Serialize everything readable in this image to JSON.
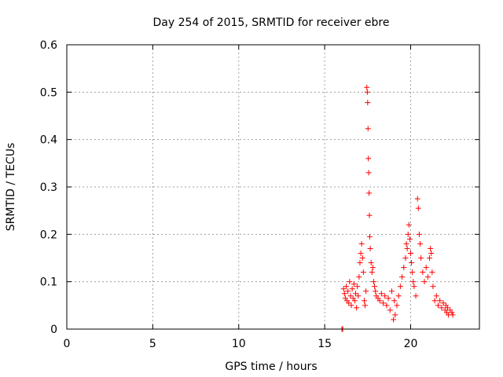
{
  "chart_data": {
    "type": "scatter",
    "title": "Day 254 of 2015, SRMTID for receiver ebre",
    "xlabel": "GPS time / hours",
    "ylabel": "SRMTID / TECUs",
    "xlim": [
      0,
      24
    ],
    "ylim": [
      0,
      0.6
    ],
    "xticks": [
      "0",
      "5",
      "10",
      "15",
      "20"
    ],
    "yticks": [
      "0",
      "0.1",
      "0.2",
      "0.3",
      "0.4",
      "0.5",
      "0.6"
    ],
    "grid": true,
    "marker": "+",
    "series": [
      {
        "name": "SRMTID",
        "color": "#ff0000",
        "points": [
          [
            16.0,
            0.0
          ],
          [
            16.05,
            0.0
          ],
          [
            16.1,
            0.085
          ],
          [
            16.15,
            0.075
          ],
          [
            16.2,
            0.065
          ],
          [
            16.25,
            0.09
          ],
          [
            16.3,
            0.06
          ],
          [
            16.35,
            0.08
          ],
          [
            16.4,
            0.055
          ],
          [
            16.45,
            0.1
          ],
          [
            16.5,
            0.07
          ],
          [
            16.55,
            0.05
          ],
          [
            16.6,
            0.085
          ],
          [
            16.65,
            0.065
          ],
          [
            16.7,
            0.095
          ],
          [
            16.75,
            0.06
          ],
          [
            16.8,
            0.075
          ],
          [
            16.85,
            0.045
          ],
          [
            16.9,
            0.09
          ],
          [
            16.95,
            0.07
          ],
          [
            17.0,
            0.11
          ],
          [
            17.05,
            0.14
          ],
          [
            17.1,
            0.16
          ],
          [
            17.15,
            0.18
          ],
          [
            17.2,
            0.15
          ],
          [
            17.25,
            0.12
          ],
          [
            17.3,
            0.06
          ],
          [
            17.35,
            0.05
          ],
          [
            17.4,
            0.08
          ],
          [
            17.45,
            0.51
          ],
          [
            17.48,
            0.5
          ],
          [
            17.5,
            0.478
          ],
          [
            17.52,
            0.423
          ],
          [
            17.54,
            0.36
          ],
          [
            17.56,
            0.33
          ],
          [
            17.58,
            0.287
          ],
          [
            17.6,
            0.24
          ],
          [
            17.62,
            0.195
          ],
          [
            17.65,
            0.17
          ],
          [
            17.7,
            0.14
          ],
          [
            17.75,
            0.12
          ],
          [
            17.8,
            0.13
          ],
          [
            17.85,
            0.1
          ],
          [
            17.9,
            0.09
          ],
          [
            17.95,
            0.08
          ],
          [
            18.0,
            0.07
          ],
          [
            18.1,
            0.065
          ],
          [
            18.2,
            0.06
          ],
          [
            18.3,
            0.075
          ],
          [
            18.4,
            0.055
          ],
          [
            18.5,
            0.07
          ],
          [
            18.6,
            0.05
          ],
          [
            18.7,
            0.065
          ],
          [
            18.8,
            0.04
          ],
          [
            18.9,
            0.08
          ],
          [
            19.0,
            0.02
          ],
          [
            19.05,
            0.06
          ],
          [
            19.1,
            0.03
          ],
          [
            19.2,
            0.05
          ],
          [
            19.3,
            0.07
          ],
          [
            19.4,
            0.09
          ],
          [
            19.5,
            0.11
          ],
          [
            19.6,
            0.13
          ],
          [
            19.7,
            0.15
          ],
          [
            19.75,
            0.18
          ],
          [
            19.8,
            0.17
          ],
          [
            19.85,
            0.2
          ],
          [
            19.9,
            0.22
          ],
          [
            19.95,
            0.19
          ],
          [
            20.0,
            0.16
          ],
          [
            20.05,
            0.14
          ],
          [
            20.1,
            0.12
          ],
          [
            20.15,
            0.1
          ],
          [
            20.2,
            0.09
          ],
          [
            20.3,
            0.07
          ],
          [
            20.4,
            0.275
          ],
          [
            20.45,
            0.255
          ],
          [
            20.5,
            0.2
          ],
          [
            20.55,
            0.18
          ],
          [
            20.6,
            0.15
          ],
          [
            20.7,
            0.12
          ],
          [
            20.8,
            0.1
          ],
          [
            20.9,
            0.13
          ],
          [
            21.0,
            0.11
          ],
          [
            21.1,
            0.15
          ],
          [
            21.15,
            0.17
          ],
          [
            21.2,
            0.16
          ],
          [
            21.25,
            0.12
          ],
          [
            21.3,
            0.09
          ],
          [
            21.4,
            0.06
          ],
          [
            21.5,
            0.07
          ],
          [
            21.6,
            0.05
          ],
          [
            21.7,
            0.06
          ],
          [
            21.8,
            0.045
          ],
          [
            21.9,
            0.055
          ],
          [
            22.0,
            0.04
          ],
          [
            22.05,
            0.05
          ],
          [
            22.1,
            0.035
          ],
          [
            22.15,
            0.045
          ],
          [
            22.2,
            0.03
          ],
          [
            22.3,
            0.04
          ],
          [
            22.4,
            0.035
          ],
          [
            22.45,
            0.03
          ]
        ]
      }
    ]
  }
}
